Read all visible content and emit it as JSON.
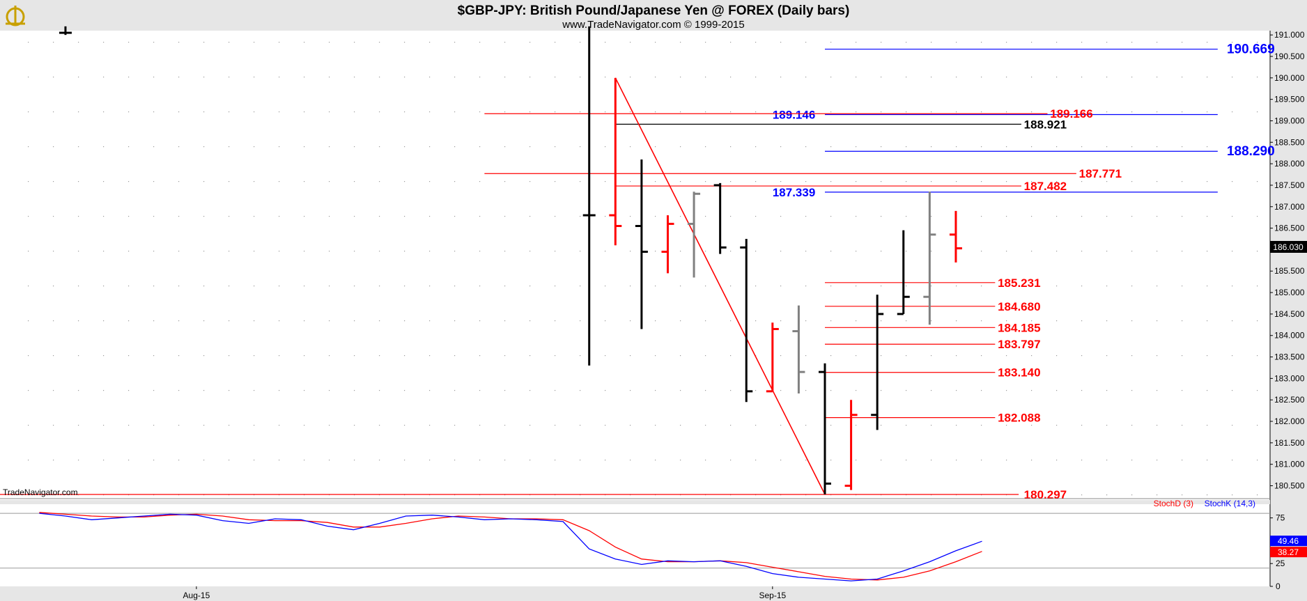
{
  "header": {
    "title": "$GBP-JPY:  British Pound/Japanese Yen @ FOREX  (Daily bars)",
    "subtitle": "www.TradeNavigator.com © 1999-2015",
    "logo_icon": "sextant-logo-icon"
  },
  "watermark": "TradeNavigator.com",
  "colors": {
    "red": "#ff0000",
    "blue": "#0000ff",
    "black": "#000000",
    "gray": "#808080",
    "panel_bg": "#e6e6e6"
  },
  "chart_data": {
    "type": "bar",
    "price_axis": {
      "ylim": [
        180.2,
        191.1
      ],
      "ticks": [
        "191.000",
        "190.500",
        "190.000",
        "189.500",
        "189.000",
        "188.500",
        "188.000",
        "187.500",
        "187.000",
        "186.500",
        "186.000",
        "185.500",
        "185.000",
        "184.500",
        "184.000",
        "183.500",
        "183.000",
        "182.500",
        "182.000",
        "181.500",
        "181.000",
        "180.500"
      ],
      "last_price": "186.030"
    },
    "x_axis": {
      "labels": [
        {
          "text": "Aug-15",
          "index": 5
        },
        {
          "text": "Sep-15",
          "index": 27
        }
      ],
      "xlim": [
        -2.5,
        46
      ]
    },
    "ohlc": [
      {
        "i": 0,
        "open": 191.05,
        "high": 191.2,
        "low": 191.0,
        "close": 191.05,
        "color": "black"
      },
      {
        "i": 20,
        "open": 186.8,
        "high": 191.2,
        "low": 183.3,
        "close": 186.8,
        "color": "black"
      },
      {
        "i": 21,
        "open": 186.8,
        "high": 190.0,
        "low": 186.1,
        "close": 186.55,
        "color": "red"
      },
      {
        "i": 22,
        "open": 186.55,
        "high": 188.1,
        "low": 184.15,
        "close": 185.95,
        "color": "black"
      },
      {
        "i": 23,
        "open": 185.95,
        "high": 186.8,
        "low": 185.45,
        "close": 186.6,
        "color": "red"
      },
      {
        "i": 24,
        "open": 186.6,
        "high": 187.35,
        "low": 185.35,
        "close": 187.3,
        "color": "gray"
      },
      {
        "i": 25,
        "open": 187.5,
        "high": 187.55,
        "low": 185.9,
        "close": 186.05,
        "color": "black"
      },
      {
        "i": 26,
        "open": 186.05,
        "high": 186.25,
        "low": 182.45,
        "close": 182.7,
        "color": "black"
      },
      {
        "i": 27,
        "open": 182.7,
        "high": 184.3,
        "low": 182.7,
        "close": 184.15,
        "color": "red"
      },
      {
        "i": 28,
        "open": 184.1,
        "high": 184.7,
        "low": 182.65,
        "close": 183.15,
        "color": "gray"
      },
      {
        "i": 29,
        "open": 183.15,
        "high": 183.35,
        "low": 180.3,
        "close": 180.55,
        "color": "black"
      },
      {
        "i": 30,
        "open": 180.5,
        "high": 182.5,
        "low": 180.4,
        "close": 182.15,
        "color": "red"
      },
      {
        "i": 31,
        "open": 182.15,
        "high": 184.95,
        "low": 181.8,
        "close": 184.5,
        "color": "black"
      },
      {
        "i": 32,
        "open": 184.5,
        "high": 186.45,
        "low": 184.5,
        "close": 184.9,
        "color": "black"
      },
      {
        "i": 33,
        "open": 184.9,
        "high": 187.35,
        "low": 184.25,
        "close": 186.35,
        "color": "gray"
      },
      {
        "i": 34,
        "open": 186.35,
        "high": 186.9,
        "low": 185.7,
        "close": 186.03,
        "color": "red"
      }
    ],
    "trend_line": {
      "from": {
        "i": 21,
        "price": 190.0
      },
      "to": {
        "i": 29,
        "price": 180.3
      },
      "color": "red"
    },
    "levels": [
      {
        "value": "190.669",
        "price": 190.669,
        "color": "blue",
        "from_i": 29,
        "to_i": 44,
        "label_i": 44.35,
        "size": "big"
      },
      {
        "value": "189.146",
        "price": 189.146,
        "color": "blue",
        "from_i": 29,
        "to_i": 44,
        "label_i": 27.0,
        "size": "normal"
      },
      {
        "value": "189.166",
        "price": 189.166,
        "color": "red",
        "from_i": 16,
        "to_i": 37.5,
        "label_i": 37.6,
        "size": "normal"
      },
      {
        "value": "188.921",
        "price": 188.921,
        "color": "black",
        "from_i": 21,
        "to_i": 36.5,
        "label_i": 36.6,
        "size": "normal"
      },
      {
        "value": "188.290",
        "price": 188.29,
        "color": "blue",
        "from_i": 29,
        "to_i": 44,
        "label_i": 44.35,
        "size": "big"
      },
      {
        "value": "187.771",
        "price": 187.771,
        "color": "red",
        "from_i": 16,
        "to_i": 38.6,
        "label_i": 38.7,
        "size": "normal"
      },
      {
        "value": "187.482",
        "price": 187.482,
        "color": "red",
        "from_i": 21,
        "to_i": 36.5,
        "label_i": 36.6,
        "size": "normal"
      },
      {
        "value": "187.339",
        "price": 187.339,
        "color": "blue",
        "from_i": 29,
        "to_i": 44,
        "label_i": 27.0,
        "size": "normal"
      },
      {
        "value": "185.231",
        "price": 185.231,
        "color": "red",
        "from_i": 29,
        "to_i": 35.5,
        "label_i": 35.6,
        "size": "normal"
      },
      {
        "value": "184.680",
        "price": 184.68,
        "color": "red",
        "from_i": 29,
        "to_i": 35.5,
        "label_i": 35.6,
        "size": "normal"
      },
      {
        "value": "184.185",
        "price": 184.185,
        "color": "red",
        "from_i": 29,
        "to_i": 35.5,
        "label_i": 35.6,
        "size": "normal"
      },
      {
        "value": "183.797",
        "price": 183.797,
        "color": "red",
        "from_i": 29,
        "to_i": 35.5,
        "label_i": 35.6,
        "size": "normal"
      },
      {
        "value": "183.140",
        "price": 183.14,
        "color": "red",
        "from_i": 29,
        "to_i": 35.5,
        "label_i": 35.6,
        "size": "normal"
      },
      {
        "value": "182.088",
        "price": 182.088,
        "color": "red",
        "from_i": 29,
        "to_i": 35.5,
        "label_i": 35.6,
        "size": "normal"
      },
      {
        "value": "180.297",
        "price": 180.297,
        "color": "red",
        "from_i": -2.5,
        "to_i": 36.4,
        "label_i": 36.6,
        "size": "normal"
      }
    ],
    "stochastic": {
      "ylim": [
        0,
        90
      ],
      "ticks": [
        "75",
        "25",
        "0"
      ],
      "ref_levels": [
        80,
        20
      ],
      "legend": [
        {
          "text": "StochD (3)",
          "color": "red"
        },
        {
          "text": "StochK (14,3)",
          "color": "blue"
        }
      ],
      "last_k": "49.46",
      "last_d": "38.27",
      "k_points": [
        [
          -1,
          80
        ],
        [
          0,
          77
        ],
        [
          1,
          73
        ],
        [
          2,
          75
        ],
        [
          3,
          77
        ],
        [
          4,
          79
        ],
        [
          5,
          78
        ],
        [
          6,
          72
        ],
        [
          7,
          69
        ],
        [
          8,
          74
        ],
        [
          9,
          73
        ],
        [
          10,
          66
        ],
        [
          11,
          62
        ],
        [
          12,
          69
        ],
        [
          13,
          77
        ],
        [
          14,
          78
        ],
        [
          15,
          76
        ],
        [
          16,
          73
        ],
        [
          17,
          74
        ],
        [
          18,
          73
        ],
        [
          19,
          71
        ],
        [
          20,
          41
        ],
        [
          21,
          30
        ],
        [
          22,
          24
        ],
        [
          23,
          28
        ],
        [
          24,
          27
        ],
        [
          25,
          28
        ],
        [
          26,
          22
        ],
        [
          27,
          14
        ],
        [
          28,
          10
        ],
        [
          29,
          8
        ],
        [
          30,
          6
        ],
        [
          31,
          8
        ],
        [
          32,
          17
        ],
        [
          33,
          27
        ],
        [
          34,
          39
        ],
        [
          35,
          49.46
        ]
      ],
      "d_points": [
        [
          -1,
          81
        ],
        [
          0,
          79
        ],
        [
          1,
          77
        ],
        [
          2,
          76
        ],
        [
          3,
          76
        ],
        [
          4,
          78
        ],
        [
          5,
          79
        ],
        [
          6,
          77
        ],
        [
          7,
          73
        ],
        [
          8,
          72
        ],
        [
          9,
          72
        ],
        [
          10,
          70
        ],
        [
          11,
          65
        ],
        [
          12,
          65
        ],
        [
          13,
          69
        ],
        [
          14,
          74
        ],
        [
          15,
          77
        ],
        [
          16,
          76
        ],
        [
          17,
          74
        ],
        [
          18,
          74
        ],
        [
          19,
          73
        ],
        [
          20,
          61
        ],
        [
          21,
          43
        ],
        [
          22,
          30
        ],
        [
          23,
          27
        ],
        [
          24,
          27
        ],
        [
          25,
          28
        ],
        [
          26,
          26
        ],
        [
          27,
          21
        ],
        [
          28,
          16
        ],
        [
          29,
          11
        ],
        [
          30,
          8
        ],
        [
          31,
          7
        ],
        [
          32,
          10
        ],
        [
          33,
          17
        ],
        [
          34,
          27
        ],
        [
          35,
          38.27
        ]
      ]
    }
  }
}
